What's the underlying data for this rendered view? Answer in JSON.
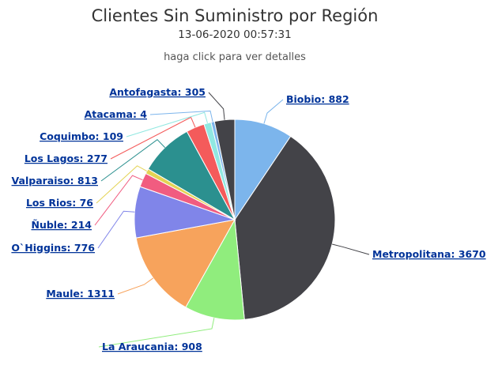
{
  "chart_data": {
    "type": "pie",
    "title": "Clientes Sin Suministro por Región",
    "subtitle": "13-06-2020 00:57:31",
    "hint": "haga click para ver detalles",
    "slices": [
      {
        "name": "Biobio",
        "value": 882,
        "color": "#7cb5ec"
      },
      {
        "name": "Metropolitana",
        "value": 3670,
        "color": "#434348"
      },
      {
        "name": "La Araucania",
        "value": 908,
        "color": "#90ed7d"
      },
      {
        "name": "Maule",
        "value": 1311,
        "color": "#f7a35c"
      },
      {
        "name": "O`Higgins",
        "value": 776,
        "color": "#8085e9"
      },
      {
        "name": "Ñuble",
        "value": 214,
        "color": "#f15c80"
      },
      {
        "name": "Los Rios",
        "value": 76,
        "color": "#e4d354"
      },
      {
        "name": "Valparaiso",
        "value": 813,
        "color": "#2b908f"
      },
      {
        "name": "Los Lagos",
        "value": 277,
        "color": "#f45b5b"
      },
      {
        "name": "Coquimbo",
        "value": 109,
        "color": "#91e8e1"
      },
      {
        "name": "Atacama",
        "value": 4,
        "color": "#7cb5ec"
      },
      {
        "name": "Antofagasta",
        "value": 305,
        "color": "#434348"
      }
    ]
  }
}
